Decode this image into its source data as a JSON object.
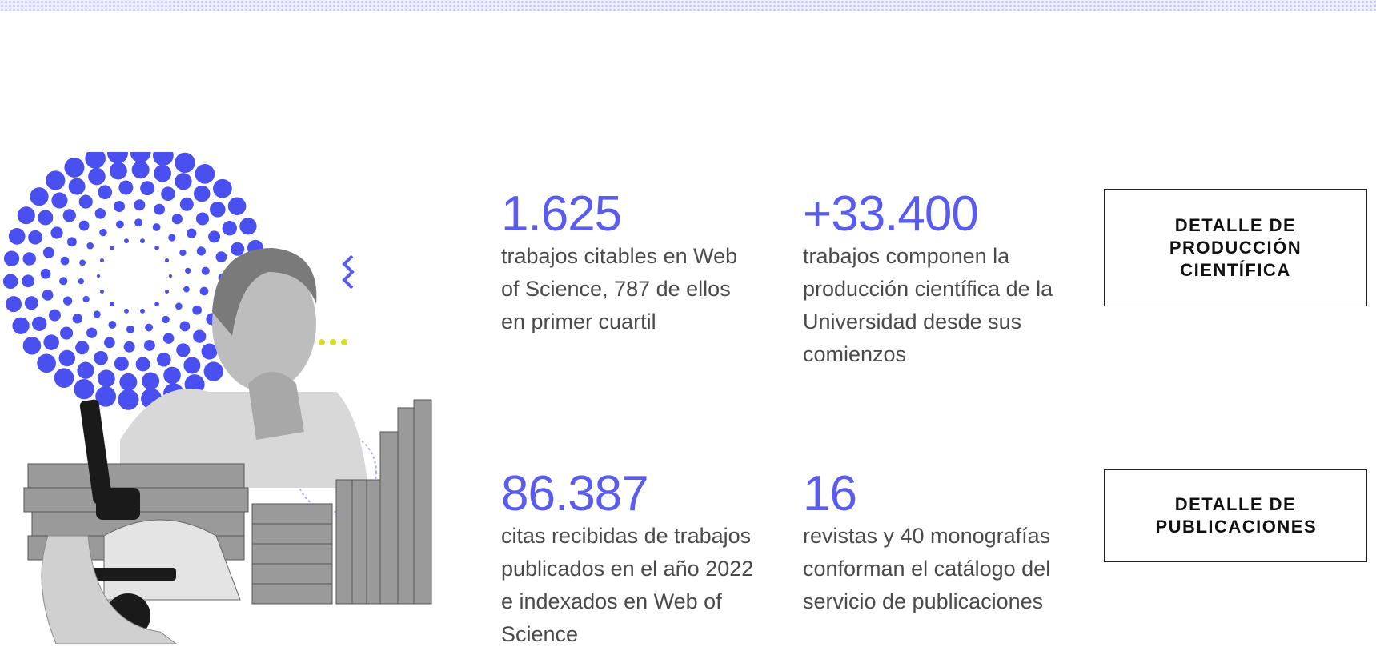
{
  "stats": [
    {
      "number": "1.625",
      "text": "trabajos citables en Web of Science, 787 de ellos en primer cuartil"
    },
    {
      "number": "+33.400",
      "text": "trabajos componen la producción científica de la Universidad desde sus comienzos"
    },
    {
      "number": "86.387",
      "text": "citas recibidas de trabajos publicados en el año 2022 e indexados en Web of Science"
    },
    {
      "number": "16",
      "text": "revistas y 40 monografías conforman el catálogo del servicio de publicaciones"
    }
  ],
  "buttons": [
    "DETALLE DE PRODUCCIÓN CIENTÍFICA",
    "DETALLE DE PUBLICACIONES"
  ]
}
